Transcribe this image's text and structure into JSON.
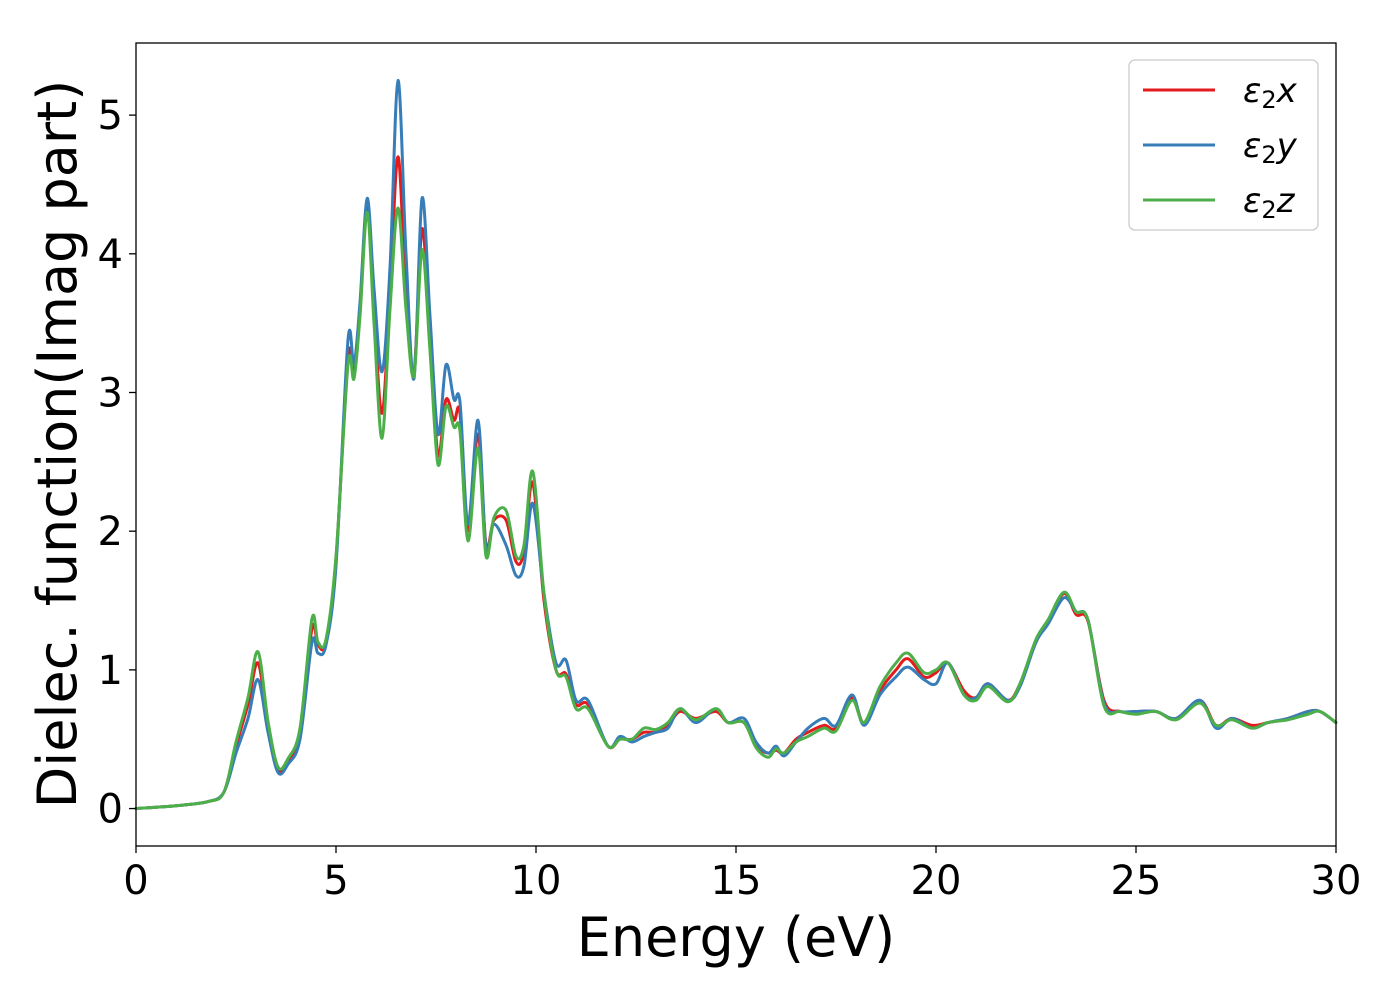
{
  "chart_data": {
    "type": "line",
    "xlabel": "Energy (eV)",
    "ylabel": "Dielec. function(Imag part)",
    "xlim": [
      0,
      30
    ],
    "ylim": [
      -0.27,
      5.52
    ],
    "xticks": [
      0,
      5,
      10,
      15,
      20,
      25,
      30
    ],
    "yticks": [
      0,
      1,
      2,
      3,
      4,
      5
    ],
    "grid": false,
    "legend_position": "top-right",
    "series": [
      {
        "name": "ε2x",
        "legend_base": "ε",
        "legend_sub": "2",
        "legend_var": "x",
        "color": "#e41a1c",
        "x": [
          0,
          1,
          1.8,
          2.2,
          2.5,
          2.8,
          3.05,
          3.3,
          3.55,
          3.8,
          4.1,
          4.4,
          4.55,
          4.75,
          5.0,
          5.3,
          5.45,
          5.6,
          5.78,
          5.95,
          6.15,
          6.35,
          6.55,
          6.75,
          6.95,
          7.15,
          7.35,
          7.55,
          7.75,
          7.95,
          8.1,
          8.3,
          8.55,
          8.75,
          8.95,
          9.25,
          9.5,
          9.7,
          9.92,
          10.2,
          10.5,
          10.75,
          11.0,
          11.3,
          11.8,
          12.1,
          12.4,
          12.7,
          13.0,
          13.3,
          13.6,
          14.0,
          14.5,
          14.8,
          15.2,
          15.5,
          15.8,
          16.0,
          16.2,
          16.5,
          16.8,
          17.2,
          17.5,
          17.9,
          18.2,
          18.6,
          19.0,
          19.3,
          19.7,
          20.0,
          20.3,
          20.7,
          21.0,
          21.3,
          21.8,
          22.1,
          22.5,
          22.8,
          23.2,
          23.5,
          23.8,
          24.2,
          24.6,
          25.0,
          25.5,
          26.0,
          26.6,
          27.0,
          27.4,
          27.9,
          28.3,
          28.8,
          29.3,
          29.6,
          30.0
        ],
        "y": [
          0.0,
          0.02,
          0.05,
          0.12,
          0.45,
          0.75,
          1.05,
          0.6,
          0.28,
          0.34,
          0.55,
          1.3,
          1.18,
          1.2,
          1.8,
          3.25,
          3.15,
          3.6,
          4.35,
          3.6,
          2.85,
          3.7,
          4.7,
          3.7,
          3.15,
          4.18,
          3.4,
          2.55,
          2.95,
          2.8,
          2.85,
          2.0,
          2.7,
          1.9,
          2.08,
          2.08,
          1.78,
          1.85,
          2.35,
          1.5,
          1.0,
          0.97,
          0.75,
          0.75,
          0.45,
          0.5,
          0.5,
          0.55,
          0.55,
          0.6,
          0.7,
          0.65,
          0.7,
          0.62,
          0.62,
          0.45,
          0.4,
          0.42,
          0.4,
          0.5,
          0.55,
          0.6,
          0.58,
          0.8,
          0.62,
          0.85,
          1.0,
          1.08,
          0.95,
          0.98,
          1.05,
          0.85,
          0.8,
          0.9,
          0.78,
          0.9,
          1.2,
          1.35,
          1.55,
          1.4,
          1.35,
          0.78,
          0.7,
          0.7,
          0.7,
          0.65,
          0.78,
          0.6,
          0.65,
          0.6,
          0.62,
          0.65,
          0.7,
          0.7,
          0.62
        ]
      },
      {
        "name": "ε2y",
        "legend_base": "ε",
        "legend_sub": "2",
        "legend_var": "y",
        "color": "#377eb8",
        "x": [
          0,
          1,
          1.8,
          2.2,
          2.5,
          2.8,
          3.05,
          3.3,
          3.55,
          3.8,
          4.1,
          4.4,
          4.55,
          4.75,
          5.0,
          5.3,
          5.45,
          5.6,
          5.78,
          5.95,
          6.15,
          6.35,
          6.55,
          6.75,
          6.95,
          7.15,
          7.35,
          7.55,
          7.75,
          7.95,
          8.1,
          8.3,
          8.55,
          8.75,
          8.95,
          9.25,
          9.5,
          9.7,
          9.92,
          10.2,
          10.5,
          10.75,
          11.0,
          11.3,
          11.8,
          12.1,
          12.4,
          12.7,
          13.0,
          13.3,
          13.6,
          14.0,
          14.5,
          14.8,
          15.2,
          15.5,
          15.8,
          16.0,
          16.2,
          16.5,
          16.8,
          17.2,
          17.5,
          17.9,
          18.2,
          18.6,
          19.0,
          19.3,
          19.7,
          20.0,
          20.3,
          20.7,
          21.0,
          21.3,
          21.8,
          22.1,
          22.5,
          22.8,
          23.2,
          23.5,
          23.8,
          24.2,
          24.6,
          25.0,
          25.5,
          26.0,
          26.6,
          27.0,
          27.4,
          27.9,
          28.3,
          28.8,
          29.3,
          29.6,
          30.0
        ],
        "y": [
          0.0,
          0.02,
          0.05,
          0.12,
          0.4,
          0.65,
          0.93,
          0.55,
          0.26,
          0.32,
          0.5,
          1.2,
          1.12,
          1.18,
          1.75,
          3.38,
          3.2,
          3.65,
          4.4,
          3.75,
          3.15,
          3.9,
          5.25,
          4.0,
          3.1,
          4.4,
          3.55,
          2.7,
          3.2,
          2.95,
          2.93,
          2.05,
          2.8,
          1.88,
          2.05,
          1.9,
          1.68,
          1.75,
          2.2,
          1.55,
          1.05,
          1.07,
          0.78,
          0.78,
          0.45,
          0.52,
          0.48,
          0.52,
          0.55,
          0.58,
          0.72,
          0.62,
          0.72,
          0.62,
          0.65,
          0.48,
          0.4,
          0.45,
          0.38,
          0.48,
          0.58,
          0.65,
          0.6,
          0.82,
          0.6,
          0.82,
          0.95,
          1.02,
          0.93,
          0.9,
          1.05,
          0.82,
          0.8,
          0.9,
          0.78,
          0.88,
          1.2,
          1.33,
          1.52,
          1.42,
          1.36,
          0.76,
          0.7,
          0.7,
          0.7,
          0.65,
          0.78,
          0.58,
          0.65,
          0.58,
          0.62,
          0.65,
          0.7,
          0.7,
          0.62
        ]
      },
      {
        "name": "ε2z",
        "legend_base": "ε",
        "legend_sub": "2",
        "legend_var": "z",
        "color": "#4daf4a",
        "x": [
          0,
          1,
          1.8,
          2.2,
          2.5,
          2.8,
          3.05,
          3.3,
          3.55,
          3.8,
          4.1,
          4.4,
          4.55,
          4.75,
          5.0,
          5.3,
          5.45,
          5.6,
          5.78,
          5.95,
          6.15,
          6.35,
          6.55,
          6.75,
          6.95,
          7.15,
          7.35,
          7.55,
          7.75,
          7.95,
          8.1,
          8.3,
          8.55,
          8.75,
          8.95,
          9.25,
          9.5,
          9.7,
          9.92,
          10.2,
          10.5,
          10.75,
          11.0,
          11.3,
          11.8,
          12.1,
          12.4,
          12.7,
          13.0,
          13.3,
          13.6,
          14.0,
          14.5,
          14.8,
          15.2,
          15.5,
          15.8,
          16.0,
          16.2,
          16.5,
          16.8,
          17.2,
          17.5,
          17.9,
          18.2,
          18.6,
          19.0,
          19.3,
          19.7,
          20.0,
          20.3,
          20.7,
          21.0,
          21.3,
          21.8,
          22.1,
          22.5,
          22.8,
          23.2,
          23.5,
          23.8,
          24.2,
          24.6,
          25.0,
          25.5,
          26.0,
          26.6,
          27.0,
          27.4,
          27.9,
          28.3,
          28.8,
          29.3,
          29.6,
          30.0
        ],
        "y": [
          0.0,
          0.02,
          0.05,
          0.12,
          0.48,
          0.8,
          1.13,
          0.63,
          0.3,
          0.36,
          0.58,
          1.37,
          1.2,
          1.22,
          1.82,
          3.2,
          3.1,
          3.55,
          4.3,
          3.5,
          2.67,
          3.6,
          4.33,
          3.6,
          3.12,
          4.03,
          3.3,
          2.48,
          2.9,
          2.75,
          2.72,
          1.93,
          2.6,
          1.82,
          2.1,
          2.15,
          1.82,
          1.9,
          2.43,
          1.55,
          1.0,
          0.95,
          0.72,
          0.72,
          0.45,
          0.5,
          0.5,
          0.58,
          0.57,
          0.62,
          0.72,
          0.64,
          0.72,
          0.62,
          0.62,
          0.44,
          0.37,
          0.43,
          0.4,
          0.48,
          0.52,
          0.58,
          0.56,
          0.78,
          0.62,
          0.88,
          1.05,
          1.12,
          0.98,
          1.0,
          1.05,
          0.82,
          0.78,
          0.88,
          0.77,
          0.9,
          1.22,
          1.36,
          1.56,
          1.42,
          1.36,
          0.74,
          0.7,
          0.68,
          0.7,
          0.64,
          0.76,
          0.6,
          0.64,
          0.58,
          0.62,
          0.64,
          0.68,
          0.7,
          0.62
        ]
      }
    ]
  }
}
